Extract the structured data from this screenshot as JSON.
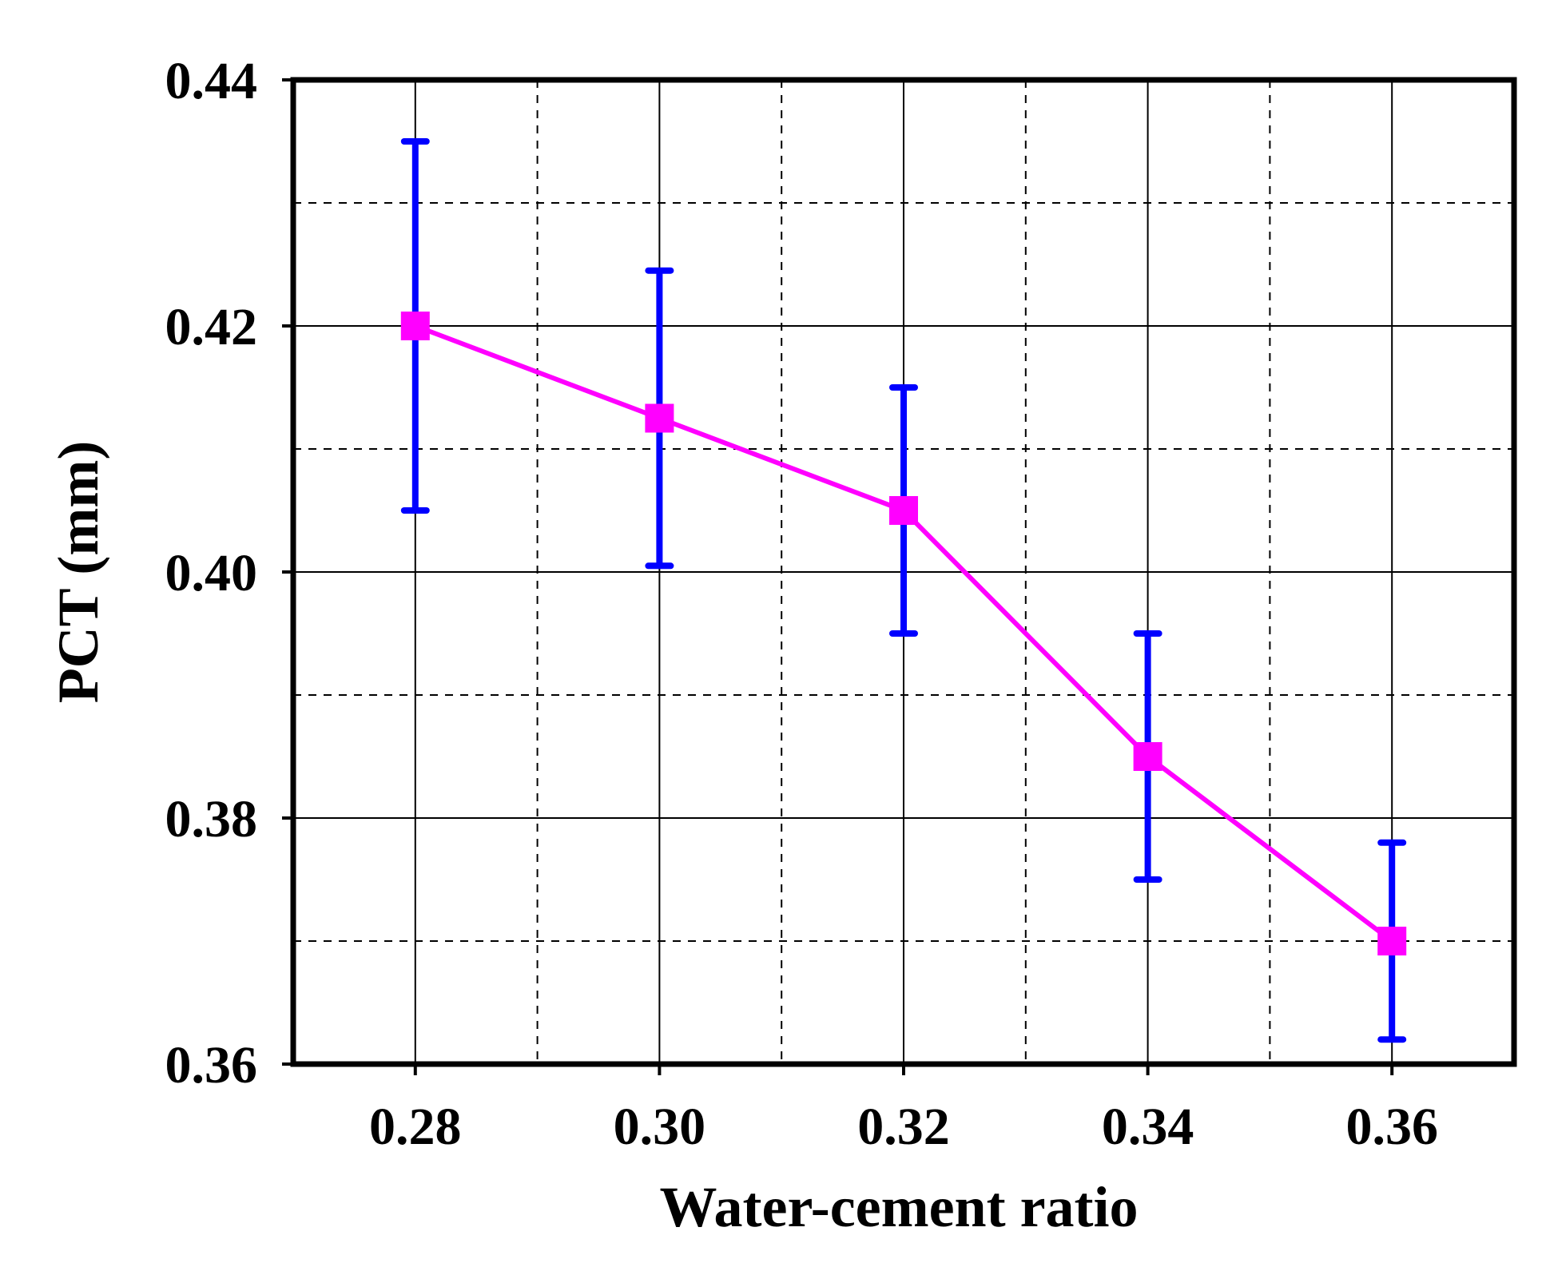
{
  "chart_data": {
    "type": "line",
    "title": "",
    "xlabel": "Water-cement ratio",
    "ylabel": "PCT (mm)",
    "x": [
      0.28,
      0.3,
      0.32,
      0.34,
      0.36
    ],
    "x_tick_labels": [
      "0.28",
      "0.30",
      "0.32",
      "0.34",
      "0.36"
    ],
    "y_tick_labels": [
      "0.36",
      "0.38",
      "0.40",
      "0.42",
      "0.44"
    ],
    "y_ticks": [
      0.36,
      0.38,
      0.4,
      0.42,
      0.44
    ],
    "xlim": [
      0.27,
      0.37
    ],
    "ylim": [
      0.36,
      0.44
    ],
    "grid": true,
    "legend": "none",
    "series": [
      {
        "name": "PCT",
        "x": [
          0.28,
          0.3,
          0.32,
          0.34,
          0.36
        ],
        "values": [
          0.42,
          0.4125,
          0.405,
          0.385,
          0.37
        ],
        "error_upper": [
          0.435,
          0.4245,
          0.415,
          0.395,
          0.378
        ],
        "error_lower": [
          0.405,
          0.4005,
          0.395,
          0.375,
          0.362
        ],
        "line_color": "#ff00ff",
        "marker_color": "#ff00ff",
        "error_color": "#0000ff",
        "marker": "square"
      }
    ]
  }
}
